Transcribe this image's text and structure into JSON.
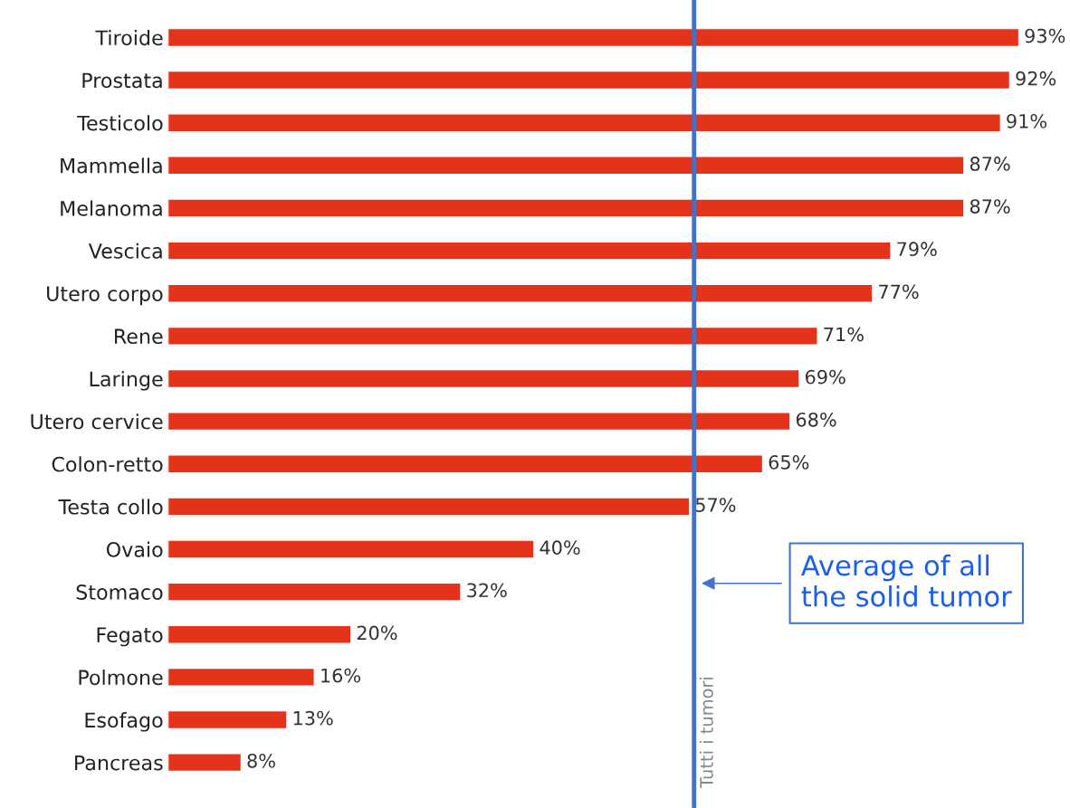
{
  "chart_data": {
    "type": "bar",
    "orientation": "horizontal",
    "categories": [
      "Tiroide",
      "Prostata",
      "Testicolo",
      "Mammella",
      "Melanoma",
      "Vescica",
      "Utero corpo",
      "Rene",
      "Laringe",
      "Utero cervice",
      "Colon-retto",
      "Testa collo",
      "Ovaio",
      "Stomaco",
      "Fegato",
      "Polmone",
      "Esofago",
      "Pancreas"
    ],
    "values": [
      93,
      92,
      91,
      87,
      87,
      79,
      77,
      71,
      69,
      68,
      65,
      57,
      40,
      32,
      20,
      16,
      13,
      8
    ],
    "value_labels": [
      "93%",
      "92%",
      "91%",
      "87%",
      "87%",
      "79%",
      "77%",
      "71%",
      "69%",
      "68%",
      "65%",
      "57%",
      "40%",
      "32%",
      "20%",
      "16%",
      "13%",
      "8%"
    ],
    "color": "#e3331a",
    "ref_lines": [
      {
        "axis": "x",
        "value": 57.5,
        "label": "Tutti i tumori",
        "color": "#4472c4"
      }
    ],
    "annotations": [
      "Average of all\nthe solid tumor"
    ],
    "grid": false,
    "legend": false
  }
}
